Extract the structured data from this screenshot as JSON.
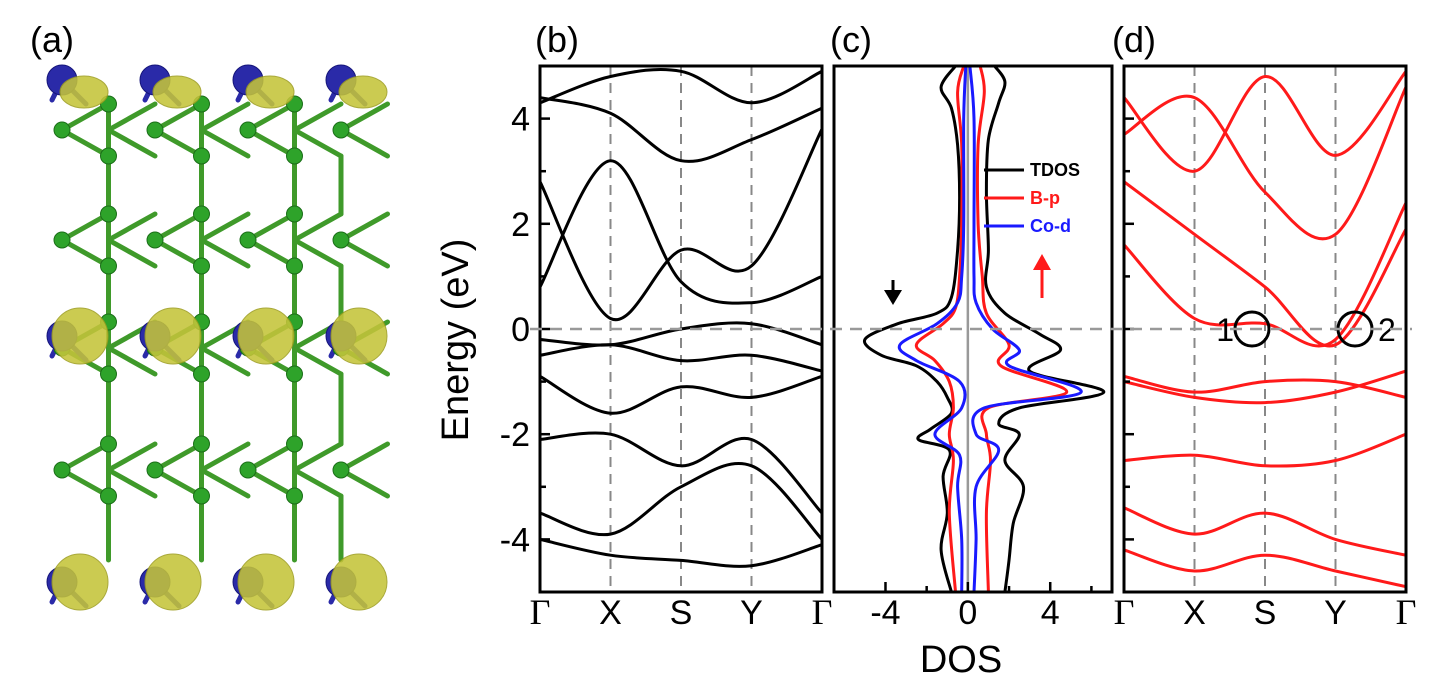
{
  "panels": {
    "a": {
      "label": "(a)"
    },
    "b": {
      "label": "(b)"
    },
    "c": {
      "label": "(c)"
    },
    "d": {
      "label": "(d)"
    }
  },
  "y_axis": {
    "label": "Energy (eV)",
    "ticks": [
      "4",
      "2",
      "0",
      "-2",
      "-4"
    ]
  },
  "k_path": [
    "Γ",
    "X",
    "S",
    "Y",
    "Γ"
  ],
  "dos_axis": {
    "label": "DOS",
    "ticks": [
      "-4",
      "0",
      "4"
    ]
  },
  "legend": [
    {
      "name": "TDOS",
      "color": "#000000"
    },
    {
      "name": "B-p",
      "color": "#ff1a1a"
    },
    {
      "name": "Co-d",
      "color": "#1a1aff"
    }
  ],
  "dirac_points": [
    {
      "label": "1"
    },
    {
      "label": "2"
    }
  ],
  "chart_data": [
    {
      "type": "line",
      "panel": "b",
      "xlabel": "",
      "ylabel": "Energy (eV)",
      "ylim": [
        -5,
        5
      ],
      "categories": [
        "Γ",
        "X",
        "S",
        "Y",
        "Γ"
      ],
      "fermi_level": 0,
      "bands": [
        [
          4.4,
          4.1,
          3.2,
          3.6,
          4.2
        ],
        [
          4.3,
          4.8,
          4.9,
          4.3,
          4.9
        ],
        [
          2.8,
          0.2,
          1.5,
          1.2,
          3.8
        ],
        [
          0.8,
          3.2,
          0.9,
          0.5,
          1.0
        ],
        [
          -0.2,
          -0.3,
          0.0,
          0.1,
          -0.3
        ],
        [
          -0.5,
          -0.3,
          -0.6,
          -0.5,
          -0.8
        ],
        [
          -0.9,
          -1.6,
          -1.1,
          -1.3,
          -0.9
        ],
        [
          -2.1,
          -2.0,
          -2.6,
          -2.1,
          -3.5
        ],
        [
          -3.5,
          -3.9,
          -3.0,
          -2.6,
          -4.0
        ],
        [
          -4.0,
          -4.3,
          -4.4,
          -4.5,
          -4.1
        ]
      ]
    },
    {
      "type": "line",
      "panel": "c",
      "xlabel": "DOS",
      "xlim": [
        -6.5,
        7
      ],
      "ylim": [
        -5,
        5
      ],
      "series": [
        {
          "name": "TDOS",
          "points": [
            [
              -0.6,
              5
            ],
            [
              -1.3,
              4.6
            ],
            [
              -0.8,
              4.2
            ],
            [
              -0.5,
              3.5
            ],
            [
              -0.4,
              2.5
            ],
            [
              -0.5,
              1.5
            ],
            [
              -0.8,
              0.6
            ],
            [
              -1.5,
              0.3
            ],
            [
              -3.4,
              0.1
            ],
            [
              -5.0,
              -0.2
            ],
            [
              -4.2,
              -0.5
            ],
            [
              -2.5,
              -0.7
            ],
            [
              -1.5,
              -1.0
            ],
            [
              -1.0,
              -1.3
            ],
            [
              -0.8,
              -1.6
            ],
            [
              -1.8,
              -1.9
            ],
            [
              -2.4,
              -2.1
            ],
            [
              -0.9,
              -2.3
            ],
            [
              -1.2,
              -2.8
            ],
            [
              -1.0,
              -3.5
            ],
            [
              -1.3,
              -4.2
            ],
            [
              -0.8,
              -5.0
            ]
          ]
        },
        {
          "name": "TDOS",
          "points": [
            [
              1.3,
              5
            ],
            [
              1.8,
              4.7
            ],
            [
              1.5,
              4.3
            ],
            [
              1.0,
              3.6
            ],
            [
              0.9,
              2.6
            ],
            [
              1.0,
              1.5
            ],
            [
              0.9,
              0.8
            ],
            [
              1.8,
              0.3
            ],
            [
              3.5,
              -0.1
            ],
            [
              4.5,
              -0.4
            ],
            [
              3.0,
              -0.8
            ],
            [
              6.6,
              -1.2
            ],
            [
              2.5,
              -1.5
            ],
            [
              1.5,
              -1.8
            ],
            [
              2.5,
              -2.0
            ],
            [
              1.8,
              -2.5
            ],
            [
              2.7,
              -3.0
            ],
            [
              2.2,
              -3.7
            ],
            [
              2.0,
              -4.4
            ],
            [
              1.8,
              -5.0
            ]
          ]
        },
        {
          "name": "B-p",
          "points": [
            [
              -0.2,
              5
            ],
            [
              -0.5,
              4.5
            ],
            [
              -0.3,
              3.5
            ],
            [
              -0.3,
              2.0
            ],
            [
              -0.4,
              1.0
            ],
            [
              -0.6,
              0.4
            ],
            [
              -1.2,
              0.1
            ],
            [
              -2.5,
              -0.3
            ],
            [
              -1.6,
              -0.6
            ],
            [
              -0.9,
              -1.0
            ],
            [
              -0.7,
              -1.5
            ],
            [
              -0.9,
              -2.0
            ],
            [
              -0.7,
              -2.5
            ],
            [
              -0.9,
              -3.5
            ],
            [
              -0.6,
              -5.0
            ]
          ]
        },
        {
          "name": "B-p",
          "points": [
            [
              0.6,
              5
            ],
            [
              0.8,
              4.5
            ],
            [
              0.5,
              3.5
            ],
            [
              0.5,
              2.0
            ],
            [
              0.7,
              1.0
            ],
            [
              0.9,
              0.3
            ],
            [
              2.0,
              -0.3
            ],
            [
              1.6,
              -0.7
            ],
            [
              4.8,
              -1.2
            ],
            [
              1.0,
              -1.5
            ],
            [
              0.9,
              -2.0
            ],
            [
              1.1,
              -2.5
            ],
            [
              0.9,
              -3.5
            ],
            [
              1.0,
              -5.0
            ]
          ]
        },
        {
          "name": "Co-d",
          "points": [
            [
              -0.1,
              5
            ],
            [
              -0.2,
              4.0
            ],
            [
              -0.2,
              2.0
            ],
            [
              -0.3,
              1.0
            ],
            [
              -0.5,
              0.5
            ],
            [
              -1.5,
              0.1
            ],
            [
              -3.3,
              -0.3
            ],
            [
              -2.5,
              -0.6
            ],
            [
              -0.4,
              -1.0
            ],
            [
              -0.3,
              -1.5
            ],
            [
              -1.6,
              -2.0
            ],
            [
              -0.4,
              -2.4
            ],
            [
              -0.5,
              -3.0
            ],
            [
              -0.3,
              -4.0
            ],
            [
              -0.3,
              -5.0
            ]
          ]
        },
        {
          "name": "Co-d",
          "points": [
            [
              0.1,
              5
            ],
            [
              0.3,
              4.0
            ],
            [
              0.3,
              2.0
            ],
            [
              0.3,
              1.0
            ],
            [
              0.4,
              0.5
            ],
            [
              1.2,
              0.0
            ],
            [
              2.5,
              -0.4
            ],
            [
              2.0,
              -0.7
            ],
            [
              5.5,
              -1.2
            ],
            [
              0.8,
              -1.5
            ],
            [
              0.4,
              -2.0
            ],
            [
              1.5,
              -2.3
            ],
            [
              0.4,
              -3.0
            ],
            [
              0.4,
              -4.0
            ],
            [
              0.3,
              -5.0
            ]
          ]
        }
      ]
    },
    {
      "type": "line",
      "panel": "d",
      "xlabel": "",
      "ylim": [
        -5,
        5
      ],
      "categories": [
        "Γ",
        "X",
        "S",
        "Y",
        "Γ"
      ],
      "fermi_level": 0,
      "bands": [
        [
          4.4,
          3.0,
          4.8,
          3.3,
          4.9
        ],
        [
          3.7,
          4.4,
          2.6,
          1.8,
          4.6
        ],
        [
          1.6,
          0.2,
          0.1,
          -0.2,
          2.4
        ],
        [
          2.8,
          1.8,
          0.8,
          -0.3,
          1.9
        ],
        [
          -0.9,
          -1.2,
          -1.0,
          -1.0,
          -1.3
        ],
        [
          -1.0,
          -1.3,
          -1.4,
          -1.2,
          -0.8
        ],
        [
          -2.5,
          -2.4,
          -2.6,
          -2.5,
          -2.0
        ],
        [
          -3.4,
          -3.9,
          -3.5,
          -4.0,
          -4.3
        ],
        [
          -4.2,
          -4.6,
          -4.3,
          -4.6,
          -4.9
        ]
      ]
    }
  ]
}
